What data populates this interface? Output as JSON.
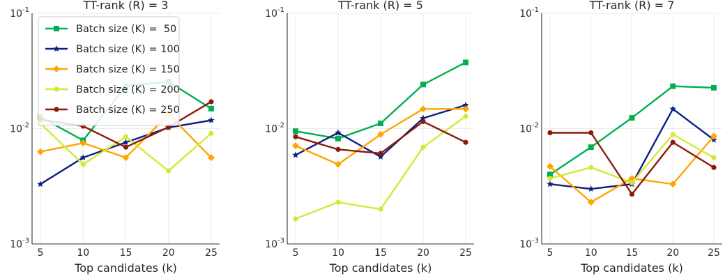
{
  "chart_data": [
    {
      "type": "line",
      "title": "TT-rank (R) = 3",
      "xlabel": "Top candidates (k)",
      "ylabel": "",
      "x": [
        5,
        10,
        15,
        20,
        25
      ],
      "xticks": [
        "5",
        "10",
        "15",
        "20",
        "25"
      ],
      "yscale": "log",
      "ylim": [
        0.001,
        0.1
      ],
      "yticks": [
        {
          "exp": "-1",
          "value": 0.1
        },
        {
          "exp": "-2",
          "value": 0.01
        },
        {
          "exp": "-3",
          "value": 0.001
        }
      ],
      "grid": true,
      "legend": "top-left",
      "series": [
        {
          "name": "Batch size (K) =  50",
          "color": "#00b050",
          "marker": "square",
          "values": [
            0.0126,
            0.0079,
            0.0235,
            0.0255,
            0.0149
          ]
        },
        {
          "name": "Batch size (K) = 100",
          "color": "#0d1f80",
          "marker": "star",
          "values": [
            0.0033,
            0.0056,
            0.0076,
            0.0102,
            0.0118
          ]
        },
        {
          "name": "Batch size (K) = 150",
          "color": "#ffa500",
          "marker": "diamond",
          "values": [
            0.0063,
            0.0075,
            0.0056,
            0.0133,
            0.0056
          ]
        },
        {
          "name": "Batch size (K) = 200",
          "color": "#d4e838",
          "marker": "circle",
          "values": [
            0.0111,
            0.0049,
            0.0085,
            0.0043,
            0.0091
          ]
        },
        {
          "name": "Batch size (K) = 250",
          "color": "#8b1a0a",
          "marker": "circle",
          "values": [
            0.012,
            0.0105,
            0.0069,
            0.0103,
            0.0171
          ]
        }
      ]
    },
    {
      "type": "line",
      "title": "TT-rank (R) = 5",
      "xlabel": "Top candidates (k)",
      "ylabel": "",
      "x": [
        5,
        10,
        15,
        20,
        25
      ],
      "xticks": [
        "5",
        "10",
        "15",
        "20",
        "25"
      ],
      "yscale": "log",
      "ylim": [
        0.001,
        0.1
      ],
      "yticks": [
        {
          "exp": "-1",
          "value": 0.1
        },
        {
          "exp": "-2",
          "value": 0.01
        },
        {
          "exp": "-3",
          "value": 0.001
        }
      ],
      "grid": true,
      "legend": "",
      "series": [
        {
          "name": "Batch size (K) =  50",
          "color": "#00b050",
          "marker": "square",
          "values": [
            0.0095,
            0.0082,
            0.0111,
            0.0241,
            0.0375
          ]
        },
        {
          "name": "Batch size (K) = 100",
          "color": "#0d1f80",
          "marker": "star",
          "values": [
            0.0059,
            0.0092,
            0.0057,
            0.0123,
            0.016
          ]
        },
        {
          "name": "Batch size (K) = 150",
          "color": "#ffa500",
          "marker": "diamond",
          "values": [
            0.0071,
            0.0049,
            0.0089,
            0.0148,
            0.0148
          ]
        },
        {
          "name": "Batch size (K) = 200",
          "color": "#d4e838",
          "marker": "circle",
          "values": [
            0.00165,
            0.0023,
            0.002,
            0.0069,
            0.0128
          ]
        },
        {
          "name": "Batch size (K) = 250",
          "color": "#8b1a0a",
          "marker": "circle",
          "values": [
            0.0085,
            0.0066,
            0.0061,
            0.0115,
            0.0076
          ]
        }
      ]
    },
    {
      "type": "line",
      "title": "TT-rank (R) = 7",
      "xlabel": "Top candidates (k)",
      "ylabel": "",
      "x": [
        5,
        10,
        15,
        20,
        25
      ],
      "xticks": [
        "5",
        "10",
        "15",
        "20",
        "25"
      ],
      "yscale": "log",
      "ylim": [
        0.001,
        0.1
      ],
      "yticks": [
        {
          "exp": "-1",
          "value": 0.1
        },
        {
          "exp": "-2",
          "value": 0.01
        },
        {
          "exp": "-3",
          "value": 0.001
        }
      ],
      "grid": true,
      "legend": "",
      "series": [
        {
          "name": "Batch size (K) =  50",
          "color": "#00b050",
          "marker": "square",
          "values": [
            0.004,
            0.0069,
            0.0124,
            0.0233,
            0.0226
          ]
        },
        {
          "name": "Batch size (K) = 100",
          "color": "#0d1f80",
          "marker": "star",
          "values": [
            0.0033,
            0.003,
            0.0033,
            0.0148,
            0.008
          ]
        },
        {
          "name": "Batch size (K) = 150",
          "color": "#ffa500",
          "marker": "diamond",
          "values": [
            0.0047,
            0.0023,
            0.0037,
            0.0033,
            0.0086
          ]
        },
        {
          "name": "Batch size (K) = 200",
          "color": "#d4e838",
          "marker": "circle",
          "values": [
            0.0037,
            0.0046,
            0.0034,
            0.0089,
            0.0056
          ]
        },
        {
          "name": "Batch size (K) = 250",
          "color": "#8b1a0a",
          "marker": "circle",
          "values": [
            0.0092,
            0.0092,
            0.0027,
            0.0076,
            0.0046
          ]
        }
      ]
    }
  ]
}
